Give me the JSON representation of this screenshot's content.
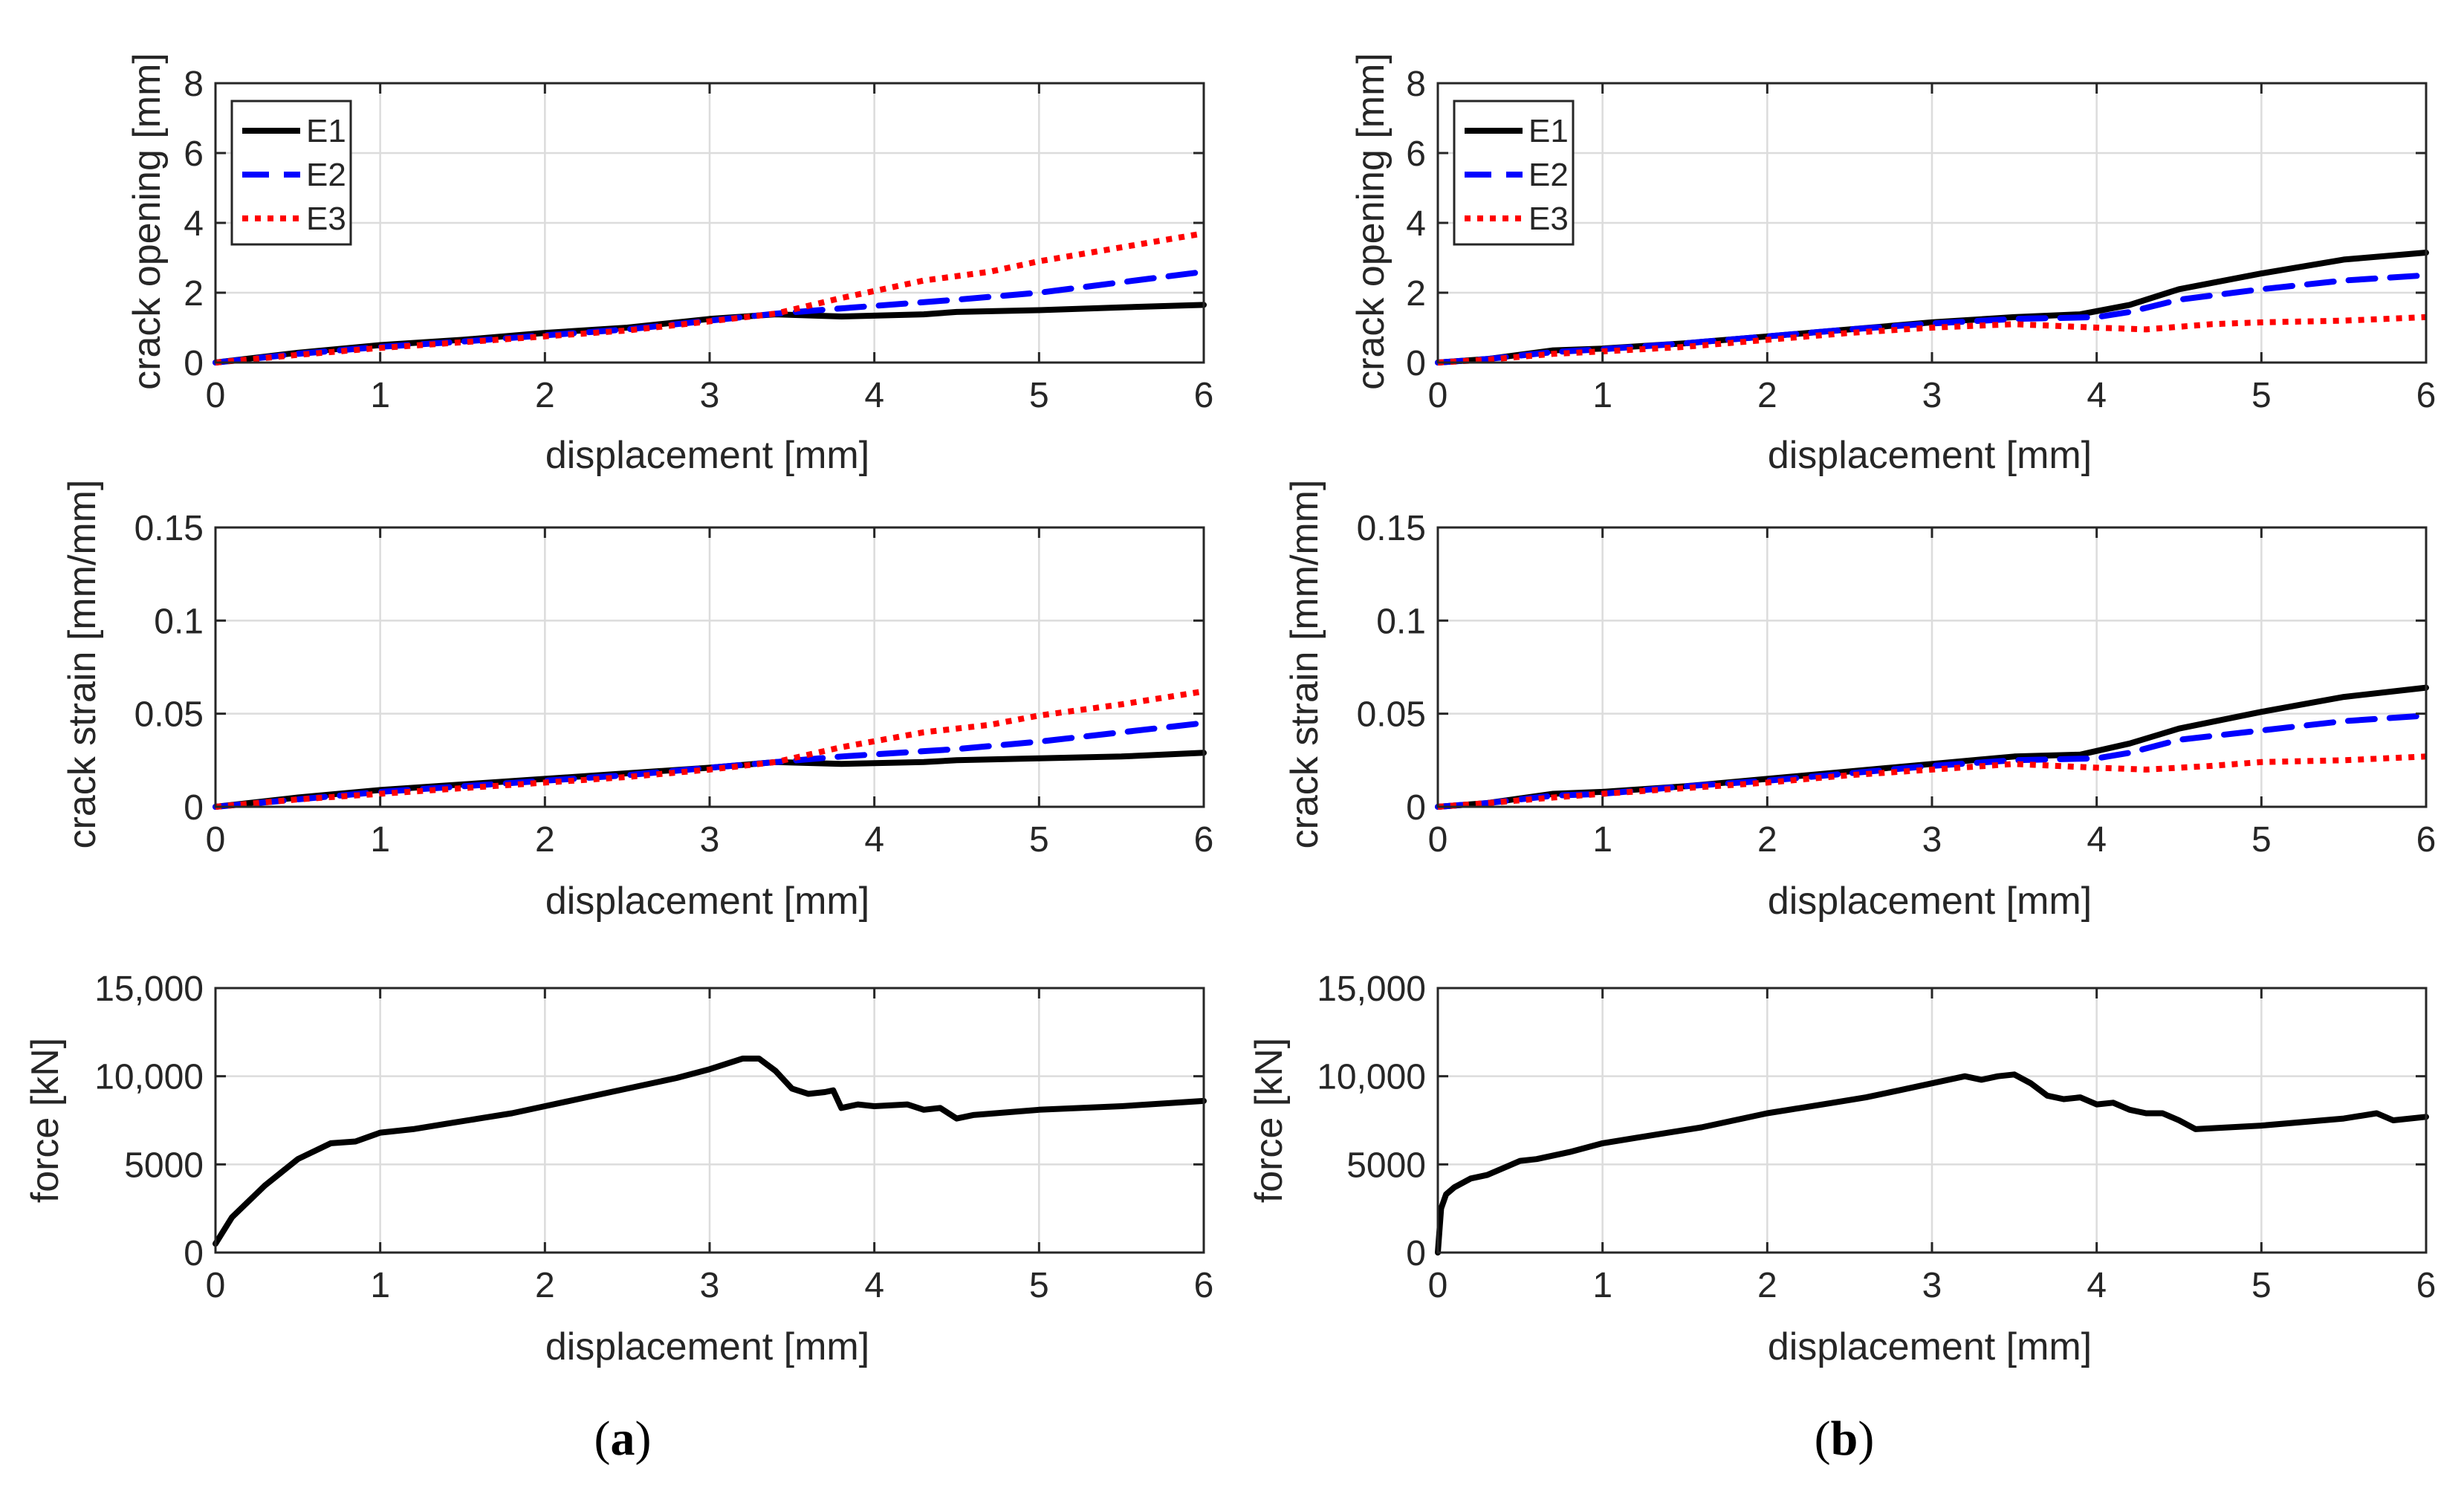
{
  "chart_data": [
    {
      "type": "line",
      "panel": "a",
      "xlabel": "displacement [mm]",
      "ylabel": "crack opening [mm]",
      "xlim": [
        0,
        6
      ],
      "ylim": [
        0,
        8
      ],
      "xticks": [
        "0",
        "1",
        "2",
        "3",
        "4",
        "5",
        "6"
      ],
      "yticks": [
        "0",
        "2",
        "4",
        "6",
        "8"
      ],
      "grid": true,
      "legend": "top-left",
      "series": [
        {
          "name": "E1",
          "style": "solid",
          "color": "#000000",
          "x": [
            0,
            0.5,
            1,
            1.5,
            2,
            2.5,
            3,
            3.4,
            3.8,
            4.3,
            4.5,
            5,
            5.5,
            6
          ],
          "y": [
            0,
            0.28,
            0.5,
            0.65,
            0.85,
            1.0,
            1.25,
            1.38,
            1.32,
            1.38,
            1.45,
            1.5,
            1.58,
            1.65
          ]
        },
        {
          "name": "E2",
          "style": "dashed",
          "color": "#0000ff",
          "x": [
            0,
            0.5,
            1,
            1.5,
            2,
            2.5,
            3,
            3.4,
            3.8,
            4.5,
            5,
            5.5,
            6
          ],
          "y": [
            0,
            0.25,
            0.45,
            0.6,
            0.78,
            0.95,
            1.2,
            1.4,
            1.55,
            1.8,
            2.0,
            2.3,
            2.6
          ]
        },
        {
          "name": "E3",
          "style": "dotted",
          "color": "#ff0000",
          "x": [
            0,
            0.5,
            1,
            1.5,
            2,
            2.5,
            3,
            3.4,
            3.8,
            4.3,
            4.7,
            5,
            5.5,
            6
          ],
          "y": [
            0,
            0.22,
            0.42,
            0.58,
            0.75,
            0.92,
            1.18,
            1.4,
            1.85,
            2.35,
            2.6,
            2.9,
            3.3,
            3.7
          ]
        }
      ]
    },
    {
      "type": "line",
      "panel": "b",
      "xlabel": "displacement [mm]",
      "ylabel": "crack opening [mm]",
      "xlim": [
        0,
        6
      ],
      "ylim": [
        0,
        8
      ],
      "xticks": [
        "0",
        "1",
        "2",
        "3",
        "4",
        "5",
        "6"
      ],
      "yticks": [
        "0",
        "2",
        "4",
        "6",
        "8"
      ],
      "grid": true,
      "legend": "top-left",
      "series": [
        {
          "name": "E1",
          "style": "solid",
          "color": "#000000",
          "x": [
            0,
            0.3,
            0.7,
            1,
            1.5,
            2,
            2.5,
            3,
            3.5,
            3.9,
            4.2,
            4.5,
            5,
            5.5,
            6
          ],
          "y": [
            0,
            0.1,
            0.35,
            0.4,
            0.55,
            0.75,
            0.95,
            1.15,
            1.3,
            1.38,
            1.65,
            2.1,
            2.55,
            2.95,
            3.15
          ]
        },
        {
          "name": "E2",
          "style": "dashed",
          "color": "#0000ff",
          "x": [
            0,
            0.3,
            0.7,
            1,
            1.5,
            2,
            2.5,
            3,
            3.5,
            4,
            4.2,
            4.5,
            5,
            5.5,
            6
          ],
          "y": [
            0,
            0.1,
            0.3,
            0.38,
            0.55,
            0.75,
            0.95,
            1.12,
            1.25,
            1.3,
            1.45,
            1.8,
            2.1,
            2.35,
            2.5
          ]
        },
        {
          "name": "E3",
          "style": "dotted",
          "color": "#ff0000",
          "x": [
            0,
            0.3,
            0.7,
            1,
            1.5,
            2,
            2.5,
            3,
            3.5,
            4,
            4.3,
            4.7,
            5,
            5.5,
            6
          ],
          "y": [
            0,
            0.08,
            0.25,
            0.32,
            0.45,
            0.65,
            0.85,
            1.0,
            1.1,
            1.0,
            0.95,
            1.1,
            1.15,
            1.2,
            1.3
          ]
        }
      ]
    },
    {
      "type": "line",
      "panel": "a",
      "xlabel": "displacement [mm]",
      "ylabel": "crack strain [mm/mm]",
      "xlim": [
        0,
        6
      ],
      "ylim": [
        0,
        0.15
      ],
      "xticks": [
        "0",
        "1",
        "2",
        "3",
        "4",
        "5",
        "6"
      ],
      "yticks": [
        "0",
        "0.05",
        "0.1",
        "0.15"
      ],
      "grid": true,
      "series": [
        {
          "name": "E1",
          "style": "solid",
          "color": "#000000",
          "x": [
            0,
            0.5,
            1,
            1.5,
            2,
            2.5,
            3,
            3.4,
            3.8,
            4.3,
            4.5,
            5,
            5.5,
            6
          ],
          "y": [
            0,
            0.005,
            0.009,
            0.012,
            0.015,
            0.018,
            0.021,
            0.024,
            0.023,
            0.024,
            0.025,
            0.026,
            0.027,
            0.029
          ]
        },
        {
          "name": "E2",
          "style": "dashed",
          "color": "#0000ff",
          "x": [
            0,
            0.5,
            1,
            1.5,
            2,
            2.5,
            3,
            3.4,
            3.8,
            4.5,
            5,
            5.5,
            6
          ],
          "y": [
            0,
            0.004,
            0.008,
            0.011,
            0.014,
            0.017,
            0.021,
            0.024,
            0.027,
            0.031,
            0.035,
            0.04,
            0.045
          ]
        },
        {
          "name": "E3",
          "style": "dotted",
          "color": "#ff0000",
          "x": [
            0,
            0.5,
            1,
            1.5,
            2,
            2.5,
            3,
            3.4,
            3.8,
            4.3,
            4.7,
            5,
            5.5,
            6
          ],
          "y": [
            0,
            0.004,
            0.007,
            0.01,
            0.013,
            0.016,
            0.02,
            0.024,
            0.032,
            0.04,
            0.044,
            0.049,
            0.055,
            0.062
          ]
        }
      ]
    },
    {
      "type": "line",
      "panel": "b",
      "xlabel": "displacement [mm]",
      "ylabel": "crack strain [mm/mm]",
      "xlim": [
        0,
        6
      ],
      "ylim": [
        0,
        0.15
      ],
      "xticks": [
        "0",
        "1",
        "2",
        "3",
        "4",
        "5",
        "6"
      ],
      "yticks": [
        "0",
        "0.05",
        "0.1",
        "0.15"
      ],
      "grid": true,
      "series": [
        {
          "name": "E1",
          "style": "solid",
          "color": "#000000",
          "x": [
            0,
            0.3,
            0.7,
            1,
            1.5,
            2,
            2.5,
            3,
            3.5,
            3.9,
            4.2,
            4.5,
            5,
            5.5,
            6
          ],
          "y": [
            0,
            0.002,
            0.007,
            0.008,
            0.011,
            0.015,
            0.019,
            0.023,
            0.027,
            0.028,
            0.034,
            0.042,
            0.051,
            0.059,
            0.064
          ]
        },
        {
          "name": "E2",
          "style": "dashed",
          "color": "#0000ff",
          "x": [
            0,
            0.3,
            0.7,
            1,
            1.5,
            2,
            2.5,
            3,
            3.5,
            4,
            4.2,
            4.5,
            5,
            5.5,
            6
          ],
          "y": [
            0,
            0.002,
            0.006,
            0.007,
            0.011,
            0.014,
            0.018,
            0.022,
            0.025,
            0.026,
            0.029,
            0.036,
            0.041,
            0.046,
            0.049
          ]
        },
        {
          "name": "E3",
          "style": "dotted",
          "color": "#ff0000",
          "x": [
            0,
            0.3,
            0.7,
            1,
            1.5,
            2,
            2.5,
            3,
            3.5,
            4,
            4.3,
            4.7,
            5,
            5.5,
            6
          ],
          "y": [
            0,
            0.002,
            0.005,
            0.007,
            0.01,
            0.013,
            0.017,
            0.02,
            0.023,
            0.021,
            0.02,
            0.022,
            0.024,
            0.025,
            0.027
          ]
        }
      ]
    },
    {
      "type": "line",
      "panel": "a",
      "xlabel": "displacement [mm]",
      "ylabel": "force [kN]",
      "xlim": [
        0,
        6
      ],
      "ylim": [
        0,
        15000
      ],
      "xticks": [
        "0",
        "1",
        "2",
        "3",
        "4",
        "5",
        "6"
      ],
      "yticks": [
        "0",
        "5000",
        "10,000",
        "15,000"
      ],
      "grid": true,
      "series": [
        {
          "name": "force",
          "style": "solid",
          "color": "#000000",
          "x": [
            0,
            0.1,
            0.3,
            0.5,
            0.7,
            0.85,
            1.0,
            1.2,
            1.4,
            1.6,
            1.8,
            2.0,
            2.2,
            2.4,
            2.6,
            2.8,
            3.0,
            3.2,
            3.3,
            3.4,
            3.5,
            3.6,
            3.7,
            3.75,
            3.8,
            3.9,
            4.0,
            4.2,
            4.3,
            4.4,
            4.5,
            4.6,
            5.0,
            5.5,
            6.0
          ],
          "y": [
            500,
            2000,
            3800,
            5300,
            6200,
            6300,
            6800,
            7000,
            7300,
            7600,
            7900,
            8300,
            8700,
            9100,
            9500,
            9900,
            10400,
            11000,
            11000,
            10300,
            9300,
            9000,
            9100,
            9200,
            8200,
            8400,
            8300,
            8400,
            8100,
            8200,
            7600,
            7800,
            8100,
            8300,
            8600
          ]
        }
      ]
    },
    {
      "type": "line",
      "panel": "b",
      "xlabel": "displacement [mm]",
      "ylabel": "force [kN]",
      "xlim": [
        0,
        6
      ],
      "ylim": [
        0,
        15000
      ],
      "xticks": [
        "0",
        "1",
        "2",
        "3",
        "4",
        "5",
        "6"
      ],
      "yticks": [
        "0",
        "5000",
        "10,000",
        "15,000"
      ],
      "grid": true,
      "series": [
        {
          "name": "force",
          "style": "solid",
          "color": "#000000",
          "x": [
            0,
            0.02,
            0.05,
            0.1,
            0.2,
            0.3,
            0.4,
            0.5,
            0.6,
            0.8,
            1.0,
            1.2,
            1.4,
            1.6,
            1.8,
            2.0,
            2.2,
            2.4,
            2.6,
            2.8,
            3.0,
            3.2,
            3.3,
            3.4,
            3.5,
            3.6,
            3.7,
            3.8,
            3.9,
            4.0,
            4.1,
            4.2,
            4.3,
            4.4,
            4.5,
            4.6,
            5.0,
            5.5,
            5.7,
            5.8,
            6.0
          ],
          "y": [
            0,
            2500,
            3300,
            3700,
            4200,
            4400,
            4800,
            5200,
            5300,
            5700,
            6200,
            6500,
            6800,
            7100,
            7500,
            7900,
            8200,
            8500,
            8800,
            9200,
            9600,
            10000,
            9800,
            10000,
            10100,
            9600,
            8900,
            8700,
            8800,
            8400,
            8500,
            8100,
            7900,
            7900,
            7500,
            7000,
            7200,
            7600,
            7900,
            7500,
            7700
          ]
        }
      ]
    }
  ],
  "captions": {
    "left": {
      "open": "(",
      "letter": "a",
      "close": ")"
    },
    "right": {
      "open": "(",
      "letter": "b",
      "close": ")"
    }
  }
}
